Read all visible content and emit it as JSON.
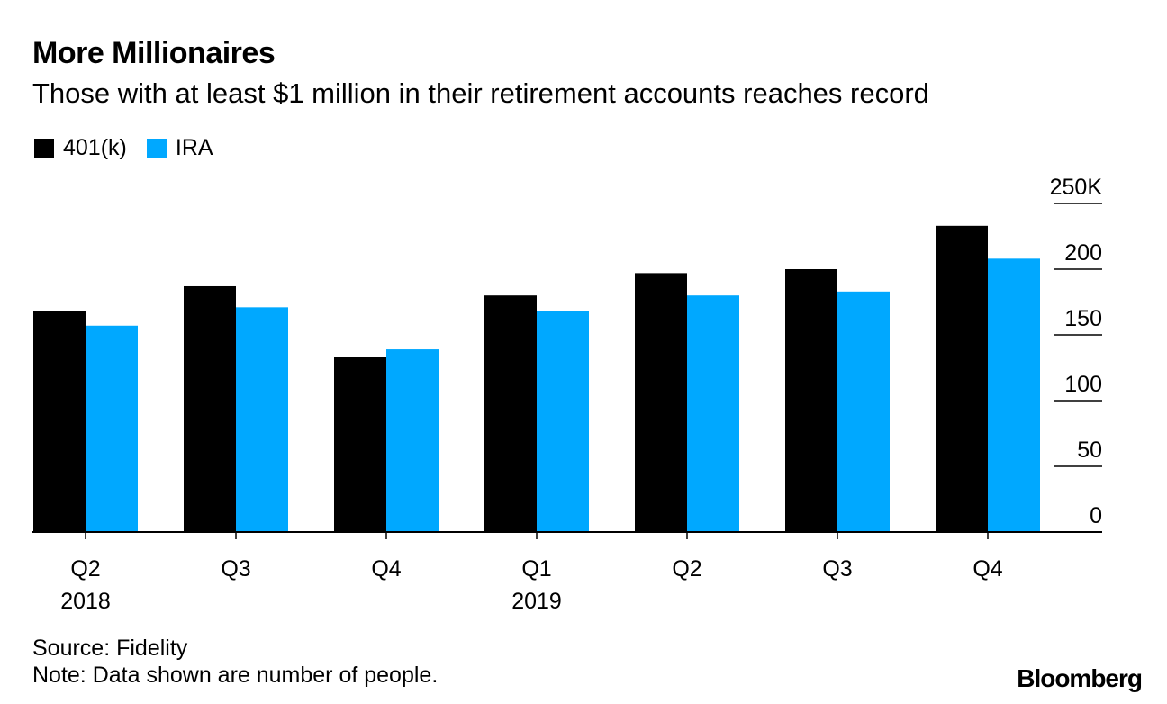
{
  "title": "More Millionaires",
  "subtitle": "Those with at least $1 million in their retirement accounts reaches record",
  "source": "Source: Fidelity",
  "note": "Note: Data shown are number of people.",
  "brand": "Bloomberg",
  "colors": {
    "k401": "#000000",
    "ira": "#00a8ff",
    "axis": "#000000"
  },
  "chart_data": {
    "type": "bar",
    "categories": [
      "Q2",
      "Q3",
      "Q4",
      "Q1",
      "Q2",
      "Q3",
      "Q4"
    ],
    "category_years": [
      "2018",
      "",
      "",
      "2019",
      "",
      "",
      ""
    ],
    "series": [
      {
        "name": "401(k)",
        "values": [
          168000,
          187000,
          133000,
          180000,
          197000,
          200000,
          233000
        ]
      },
      {
        "name": "IRA",
        "values": [
          157000,
          171000,
          139000,
          168000,
          180000,
          183000,
          208000
        ]
      }
    ],
    "yticks": [
      "0",
      "50",
      "100",
      "150",
      "200",
      "250K"
    ],
    "ylim": [
      0,
      250000
    ],
    "grid": false,
    "legend_position": "top-left",
    "axis_position": "right"
  }
}
